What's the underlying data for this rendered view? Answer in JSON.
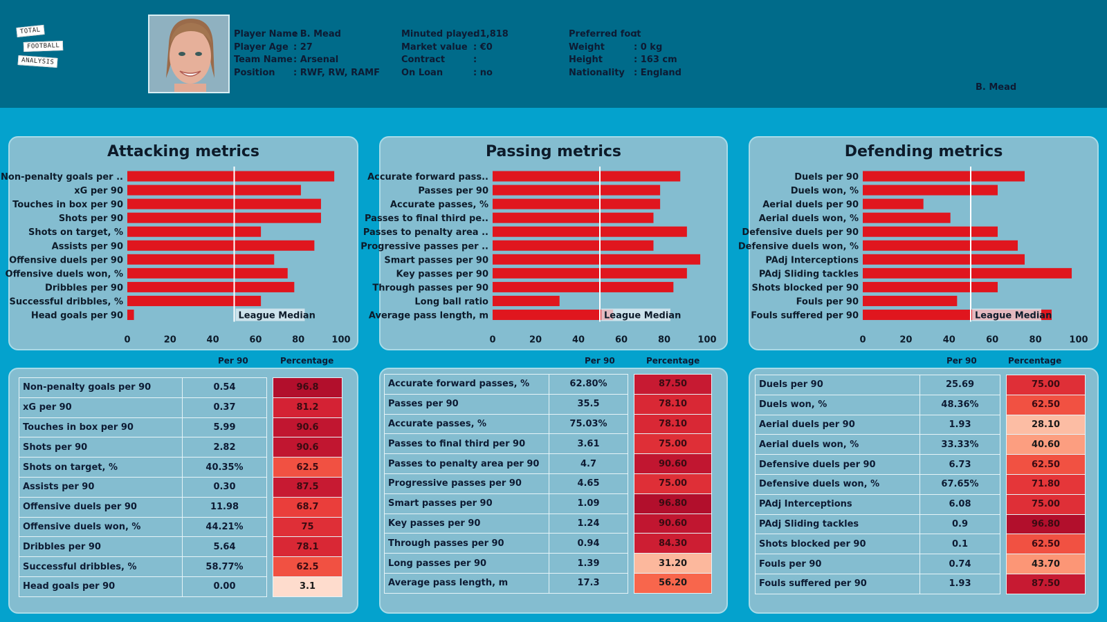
{
  "header": {
    "logo": [
      "TOTAL",
      "FOOTBALL",
      "ANALYSIS"
    ],
    "photo_alt": "player-photo",
    "col1": [
      {
        "k": "Player Name",
        "v": ": B. Mead"
      },
      {
        "k": "Player Age",
        "v": ": 27"
      },
      {
        "k": "Team Name",
        "v": ": Arsenal"
      },
      {
        "k": "Position",
        "v": ": RWF, RW, RAMF"
      }
    ],
    "col2": [
      {
        "k": "Minuted played",
        "v": ": 1,818"
      },
      {
        "k": "Market value",
        "v": ": €0"
      },
      {
        "k": "Contract",
        "v": ":"
      },
      {
        "k": "On Loan",
        "v": ": no"
      }
    ],
    "col3": [
      {
        "k": "Preferred foot",
        "v": ":"
      },
      {
        "k": "Weight",
        "v": ": 0 kg"
      },
      {
        "k": "Height",
        "v": ": 163 cm"
      },
      {
        "k": "Nationality",
        "v": ": England"
      }
    ],
    "name_tag": "B. Mead"
  },
  "table_headers": {
    "per90": "Per 90",
    "pct": "Percentage"
  },
  "chart_data": [
    {
      "type": "bar",
      "orientation": "horizontal",
      "title": "Attacking metrics",
      "categories": [
        "Non-penalty goals per ..",
        "xG per 90",
        "Touches in box per 90",
        "Shots per 90",
        "Shots on target, %",
        "Assists per 90",
        "Offensive duels per 90",
        "Offensive duels won, %",
        "Dribbles per 90",
        "Successful dribbles, %",
        "Head goals per 90"
      ],
      "values": [
        96.8,
        81.2,
        90.6,
        90.6,
        62.5,
        87.5,
        68.7,
        75,
        78.1,
        62.5,
        3.1
      ],
      "xlim": [
        0,
        100
      ],
      "xticks": [
        "0",
        "20",
        "40",
        "60",
        "80",
        "100"
      ],
      "reference_line": {
        "value": 50,
        "label": "League Median"
      },
      "bar_color": "#e0161e"
    },
    {
      "type": "bar",
      "orientation": "horizontal",
      "title": "Passing metrics",
      "categories": [
        "Accurate forward pass..",
        "Passes per 90",
        "Accurate passes, %",
        "Passes to final third pe..",
        "Passes to penalty area ..",
        "Progressive passes per ..",
        "Smart passes per 90",
        "Key passes per 90",
        "Through passes per 90",
        "Long ball ratio",
        "Average pass length, m"
      ],
      "values": [
        87.5,
        78.1,
        78.1,
        75.0,
        90.6,
        75.0,
        96.8,
        90.6,
        84.3,
        31.2,
        56.2
      ],
      "xlim": [
        0,
        100
      ],
      "xticks": [
        "0",
        "20",
        "40",
        "60",
        "80",
        "100"
      ],
      "reference_line": {
        "value": 50,
        "label": "League Median"
      },
      "bar_color": "#e0161e"
    },
    {
      "type": "bar",
      "orientation": "horizontal",
      "title": "Defending metrics",
      "categories": [
        "Duels per 90",
        "Duels won, %",
        "Aerial duels per 90",
        "Aerial duels won, %",
        "Defensive duels per 90",
        "Defensive duels won, %",
        "PAdj Interceptions",
        "PAdj Sliding tackles",
        "Shots blocked per 90",
        "Fouls per 90",
        "Fouls suffered per 90"
      ],
      "values": [
        75.0,
        62.5,
        28.1,
        40.6,
        62.5,
        71.8,
        75.0,
        96.8,
        62.5,
        43.7,
        87.5
      ],
      "xlim": [
        0,
        100
      ],
      "xticks": [
        "0",
        "20",
        "40",
        "60",
        "80",
        "100"
      ],
      "reference_line": {
        "value": 50,
        "label": "League Median"
      },
      "bar_color": "#e0161e"
    }
  ],
  "tables": [
    {
      "name": "attacking",
      "rows": [
        {
          "metric": "Non-penalty goals per 90",
          "per90": "0.54",
          "pct": "96.8",
          "pv": 96.8
        },
        {
          "metric": "xG per 90",
          "per90": "0.37",
          "pct": "81.2",
          "pv": 81.2
        },
        {
          "metric": "Touches in box per 90",
          "per90": "5.99",
          "pct": "90.6",
          "pv": 90.6
        },
        {
          "metric": "Shots per 90",
          "per90": "2.82",
          "pct": "90.6",
          "pv": 90.6
        },
        {
          "metric": "Shots on target, %",
          "per90": "40.35%",
          "pct": "62.5",
          "pv": 62.5
        },
        {
          "metric": "Assists per 90",
          "per90": "0.30",
          "pct": "87.5",
          "pv": 87.5
        },
        {
          "metric": "Offensive duels per 90",
          "per90": "11.98",
          "pct": "68.7",
          "pv": 68.7
        },
        {
          "metric": "Offensive duels won, %",
          "per90": "44.21%",
          "pct": "75",
          "pv": 75
        },
        {
          "metric": "Dribbles per 90",
          "per90": "5.64",
          "pct": "78.1",
          "pv": 78.1
        },
        {
          "metric": "Successful dribbles, %",
          "per90": "58.77%",
          "pct": "62.5",
          "pv": 62.5
        },
        {
          "metric": "Head goals per 90",
          "per90": "0.00",
          "pct": "3.1",
          "pv": 3.1
        }
      ]
    },
    {
      "name": "passing",
      "rows": [
        {
          "metric": "Accurate forward passes, %",
          "per90": "62.80%",
          "pct": "87.50",
          "pv": 87.5
        },
        {
          "metric": "Passes per 90",
          "per90": "35.5",
          "pct": "78.10",
          "pv": 78.1
        },
        {
          "metric": "Accurate passes, %",
          "per90": "75.03%",
          "pct": "78.10",
          "pv": 78.1
        },
        {
          "metric": "Passes to final third per 90",
          "per90": "3.61",
          "pct": "75.00",
          "pv": 75.0
        },
        {
          "metric": "Passes to penalty area per 90",
          "per90": "4.7",
          "pct": "90.60",
          "pv": 90.6
        },
        {
          "metric": "Progressive passes per 90",
          "per90": "4.65",
          "pct": "75.00",
          "pv": 75.0
        },
        {
          "metric": "Smart passes per 90",
          "per90": "1.09",
          "pct": "96.80",
          "pv": 96.8
        },
        {
          "metric": "Key passes per 90",
          "per90": "1.24",
          "pct": "90.60",
          "pv": 90.6
        },
        {
          "metric": "Through passes per 90",
          "per90": "0.94",
          "pct": "84.30",
          "pv": 84.3
        },
        {
          "metric": "Long passes per 90",
          "per90": "1.39",
          "pct": "31.20",
          "pv": 31.2
        },
        {
          "metric": "Average pass length, m",
          "per90": "17.3",
          "pct": "56.20",
          "pv": 56.2
        }
      ]
    },
    {
      "name": "defending",
      "rows": [
        {
          "metric": "Duels per 90",
          "per90": "25.69",
          "pct": "75.00",
          "pv": 75.0
        },
        {
          "metric": "Duels won, %",
          "per90": "48.36%",
          "pct": "62.50",
          "pv": 62.5
        },
        {
          "metric": "Aerial duels per 90",
          "per90": "1.93",
          "pct": "28.10",
          "pv": 28.1
        },
        {
          "metric": "Aerial duels won, %",
          "per90": "33.33%",
          "pct": "40.60",
          "pv": 40.6
        },
        {
          "metric": "Defensive duels per 90",
          "per90": "6.73",
          "pct": "62.50",
          "pv": 62.5
        },
        {
          "metric": "Defensive duels won, %",
          "per90": "67.65%",
          "pct": "71.80",
          "pv": 71.8
        },
        {
          "metric": "PAdj Interceptions",
          "per90": "6.08",
          "pct": "75.00",
          "pv": 75.0
        },
        {
          "metric": "PAdj Sliding tackles",
          "per90": "0.9",
          "pct": "96.80",
          "pv": 96.8
        },
        {
          "metric": "Shots blocked per 90",
          "per90": "0.1",
          "pct": "62.50",
          "pv": 62.5
        },
        {
          "metric": "Fouls per 90",
          "per90": "0.74",
          "pct": "43.70",
          "pv": 43.7
        },
        {
          "metric": "Fouls suffered per 90",
          "per90": "1.93",
          "pct": "87.50",
          "pv": 87.5
        }
      ]
    }
  ]
}
